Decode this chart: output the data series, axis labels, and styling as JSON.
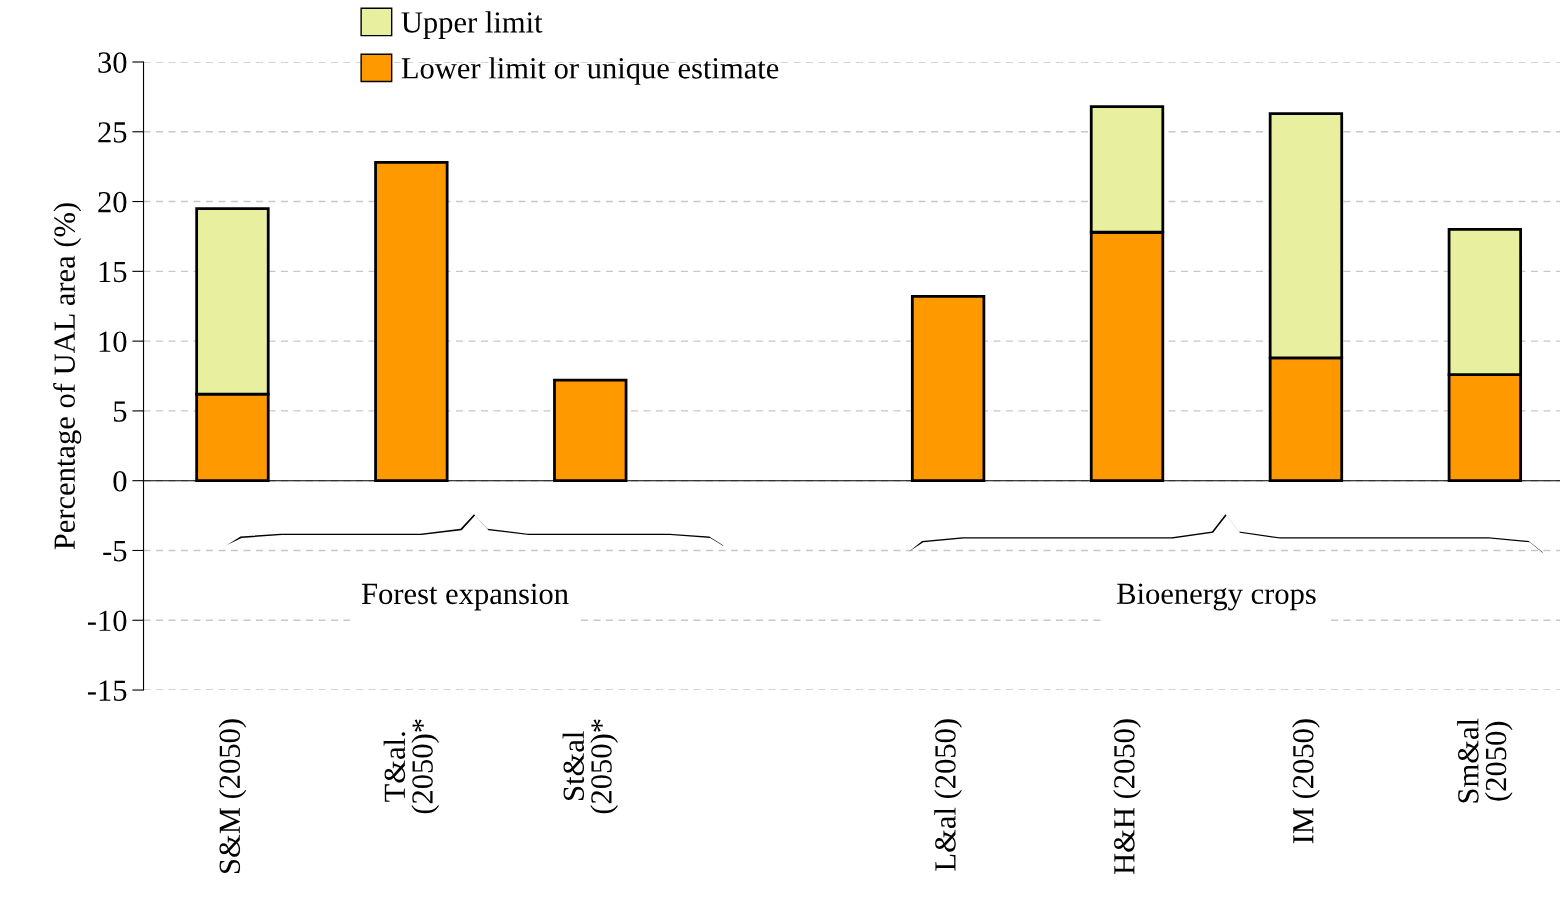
{
  "chart_data": {
    "type": "bar",
    "stacked": true,
    "ylabel": "Percentage of UAL area (%)",
    "categories": [
      "S&M (2050)",
      "T&al.\n(2050)*",
      "St&al\n(2050)*",
      null,
      "L&al (2050)",
      "H&H (2050)",
      "IM (2050)",
      "Sm&al\n(2050)"
    ],
    "series": [
      {
        "name": "Lower limit or unique estimate",
        "color": "#ff9900",
        "values": [
          6.2,
          22.8,
          7.2,
          null,
          13.2,
          17.8,
          8.8,
          7.6
        ]
      },
      {
        "name": "Upper limit",
        "color": "#e8f0a0",
        "values": [
          13.3,
          null,
          null,
          null,
          null,
          9.0,
          17.5,
          10.4
        ]
      }
    ],
    "ylim": [
      -15,
      30
    ],
    "yticks": [
      -15,
      -10,
      -5,
      0,
      5,
      10,
      15,
      20,
      25,
      30
    ],
    "grid": "y",
    "legend": "top left",
    "annotations": [
      "Forest expansion",
      "Bioenergy crops"
    ]
  }
}
